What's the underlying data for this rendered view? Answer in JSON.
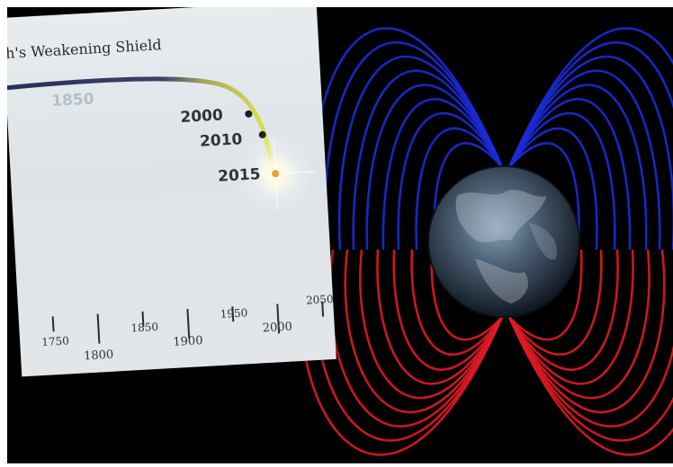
{
  "chart": {
    "title": "h's Weakening Shield",
    "point_labels": [
      "1850",
      "2000",
      "2010",
      "2015"
    ],
    "axis_ticks_minor": [
      "1750",
      "1850",
      "1950",
      "2050"
    ],
    "axis_ticks_major": [
      "1800",
      "1900",
      "2000"
    ]
  },
  "colors": {
    "background": "#000000",
    "north_field_lines": "#1b2bd8",
    "south_field_lines": "#e01b24",
    "curve_dark": "#2a2d5c",
    "curve_highlight": "#d8dc4a",
    "glow": "#fffde8"
  },
  "scene": {
    "subject": "earth-with-magnetic-field"
  }
}
